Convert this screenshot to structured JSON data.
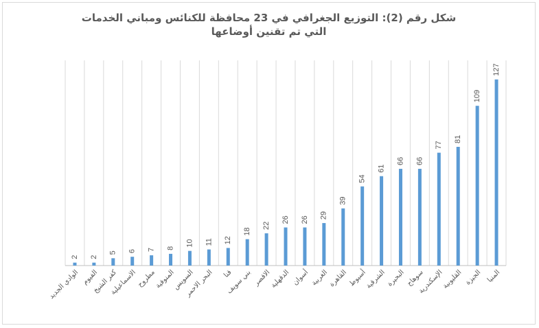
{
  "chart_data": {
    "type": "bar",
    "title": "شكل رقم (2): التوزيع الجغرافي في 23 محافظة للكنائس ومباني الخدمات التي تم تقنين أوضاعها",
    "title_line1": "شكل رقم (2): التوزيع الجغرافي في 23 محافظة للكنائس ومباني الخدمات",
    "title_line2": "التي تم تقنين أوضاعها",
    "categories": [
      "الوادي الجديد",
      "الفيوم",
      "كفر الشيخ",
      "الاسماعيلية",
      "مطروح",
      "المنوفية",
      "السويس",
      "البحر الاحمر",
      "قنا",
      "بني سويف",
      "الاقصر",
      "الدقهلية",
      "أسوان",
      "الغربية",
      "القاهرة",
      "أسيوط",
      "الشرقية",
      "البحيرة",
      "سوهاج",
      "الإسكندرية",
      "القليوبية",
      "الجيزة",
      "المنيا"
    ],
    "values": [
      2,
      2,
      5,
      6,
      7,
      8,
      10,
      11,
      12,
      18,
      22,
      26,
      26,
      29,
      39,
      54,
      61,
      66,
      66,
      77,
      81,
      109,
      127
    ],
    "ylim": [
      0,
      140
    ],
    "bar_color": "#5b9bd5",
    "grid": "vertical",
    "data_labels": true
  }
}
